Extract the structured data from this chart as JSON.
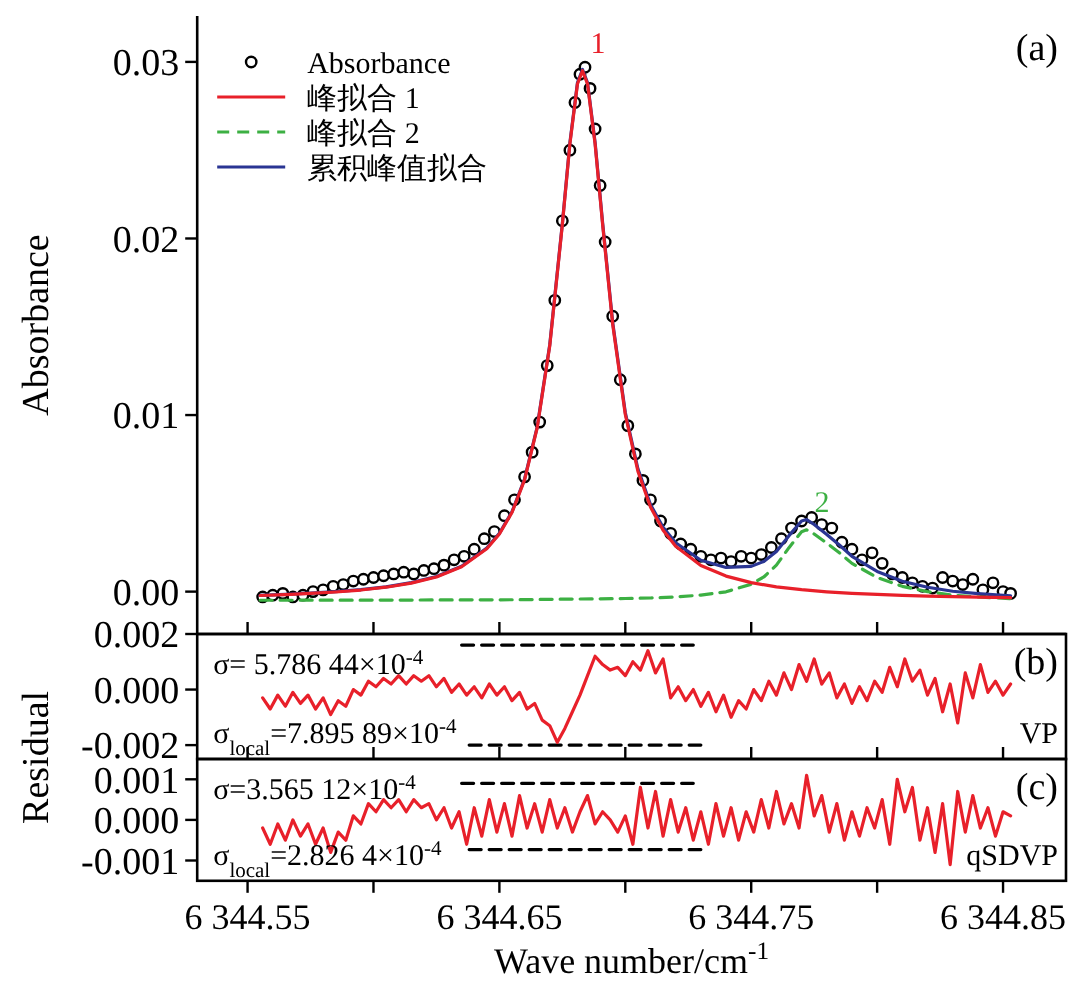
{
  "chart_data": [
    {
      "type": "line",
      "ylabel": "Absorbance",
      "xlim": [
        6344.53,
        6344.875
      ],
      "ylim": [
        -0.0024,
        0.0326
      ],
      "xticks": [
        6344.55,
        6344.6,
        6344.65,
        6344.7,
        6344.75,
        6344.8,
        6344.85
      ],
      "yticks": [
        {
          "value": 0,
          "label": "0.00"
        },
        {
          "value": 0.01,
          "label": "0.01"
        },
        {
          "value": 0.02,
          "label": "0.02"
        },
        {
          "value": 0.03,
          "label": "0.03"
        }
      ],
      "tick_labels": "y",
      "legend": "top left",
      "annotations": [
        "(a)",
        {
          "text": "1",
          "x": 6344.683,
          "y": 0.0295
        },
        {
          "text": "2",
          "x": 6344.772,
          "y": 0.0035
        }
      ],
      "series": [
        {
          "name": "Absorbance",
          "type": "scatter",
          "marker": "circle",
          "color": "#000000",
          "x": [
            6344.556,
            6344.56,
            6344.564,
            6344.568,
            6344.572,
            6344.576,
            6344.58,
            6344.584,
            6344.588,
            6344.592,
            6344.596,
            6344.6,
            6344.604,
            6344.608,
            6344.612,
            6344.616,
            6344.62,
            6344.624,
            6344.628,
            6344.632,
            6344.636,
            6344.64,
            6344.644,
            6344.648,
            6344.652,
            6344.656,
            6344.66,
            6344.663,
            6344.666,
            6344.669,
            6344.672,
            6344.675,
            6344.678,
            6344.68,
            6344.682,
            6344.684,
            6344.686,
            6344.688,
            6344.69,
            6344.692,
            6344.695,
            6344.698,
            6344.701,
            6344.704,
            6344.707,
            6344.71,
            6344.714,
            6344.718,
            6344.722,
            6344.726,
            6344.73,
            6344.734,
            6344.738,
            6344.742,
            6344.746,
            6344.75,
            6344.754,
            6344.758,
            6344.762,
            6344.766,
            6344.77,
            6344.774,
            6344.778,
            6344.782,
            6344.786,
            6344.79,
            6344.794,
            6344.798,
            6344.802,
            6344.806,
            6344.81,
            6344.814,
            6344.818,
            6344.822,
            6344.826,
            6344.83,
            6344.834,
            6344.838,
            6344.842,
            6344.846,
            6344.85,
            6344.853
          ],
          "values": [
            -0.0003,
            -0.0002,
            -0.0001,
            -0.0003,
            -0.0002,
            0.0,
            0.0001,
            0.0003,
            0.0004,
            0.0006,
            0.0007,
            0.0008,
            0.0009,
            0.001,
            0.0011,
            0.001,
            0.0012,
            0.0013,
            0.0015,
            0.0018,
            0.002,
            0.0024,
            0.003,
            0.0034,
            0.0043,
            0.0052,
            0.0065,
            0.0079,
            0.0096,
            0.0128,
            0.0165,
            0.021,
            0.025,
            0.0277,
            0.0293,
            0.0297,
            0.0285,
            0.0262,
            0.023,
            0.0198,
            0.0156,
            0.012,
            0.0094,
            0.0078,
            0.0063,
            0.0052,
            0.004,
            0.0033,
            0.0027,
            0.0024,
            0.002,
            0.0018,
            0.0019,
            0.0017,
            0.002,
            0.0019,
            0.0021,
            0.0025,
            0.003,
            0.0036,
            0.004,
            0.0042,
            0.0038,
            0.0036,
            0.0028,
            0.0024,
            0.0018,
            0.0022,
            0.0016,
            0.001,
            0.0008,
            0.0005,
            0.0003,
            0.0002,
            0.0008,
            0.0006,
            0.0004,
            0.0007,
            0.0001,
            0.0005,
            0.0,
            -0.0001
          ]
        },
        {
          "name": "峰拟合 1",
          "color": "#e8202a",
          "x": [
            6344.555,
            6344.565,
            6344.575,
            6344.585,
            6344.595,
            6344.605,
            6344.615,
            6344.625,
            6344.635,
            6344.645,
            6344.65,
            6344.655,
            6344.66,
            6344.665,
            6344.67,
            6344.675,
            6344.678,
            6344.681,
            6344.683,
            6344.685,
            6344.688,
            6344.691,
            6344.695,
            6344.7,
            6344.705,
            6344.71,
            6344.715,
            6344.72,
            6344.73,
            6344.74,
            6344.75,
            6344.76,
            6344.77,
            6344.78,
            6344.79,
            6344.8,
            6344.81,
            6344.82,
            6344.83,
            6344.84,
            6344.853
          ],
          "values": [
            -0.00022,
            -0.00017,
            -0.0001,
            -2e-05,
            9e-05,
            0.00025,
            0.00048,
            0.00083,
            0.00141,
            0.00243,
            0.00326,
            0.00448,
            0.00633,
            0.00927,
            0.01392,
            0.02078,
            0.02536,
            0.02875,
            0.0295,
            0.02875,
            0.02536,
            0.02078,
            0.01513,
            0.01003,
            0.00682,
            0.00479,
            0.00347,
            0.00257,
            0.00148,
            0.00088,
            0.00051,
            0.00027,
            0.00011,
            -1e-05,
            -0.0001,
            -0.00016,
            -0.00021,
            -0.00025,
            -0.00028,
            -0.00031,
            -0.00034
          ]
        },
        {
          "name": "峰拟合 2",
          "line_style": "dashed",
          "color": "#3cb043",
          "x": [
            6344.555,
            6344.605,
            6344.655,
            6344.7,
            6344.71,
            6344.72,
            6344.73,
            6344.74,
            6344.75,
            6344.755,
            6344.76,
            6344.765,
            6344.77,
            6344.772,
            6344.775,
            6344.78,
            6344.785,
            6344.79,
            6344.8,
            6344.81,
            6344.82,
            6344.83,
            6344.84,
            6344.853
          ],
          "values": [
            -0.00049,
            -0.00048,
            -0.00046,
            -0.00039,
            -0.00036,
            -0.0003,
            -0.0002,
            -1e-05,
            0.00042,
            0.00083,
            0.0015,
            0.00249,
            0.00339,
            0.0035,
            0.00326,
            0.00275,
            0.0022,
            0.0016,
            0.0008,
            0.0003,
            0.0,
            -0.0002,
            -0.0003,
            -0.0004
          ]
        },
        {
          "name": "累积峰值拟合",
          "color": "#2a3593",
          "x": [
            6344.555,
            6344.565,
            6344.575,
            6344.585,
            6344.595,
            6344.605,
            6344.615,
            6344.625,
            6344.635,
            6344.645,
            6344.65,
            6344.655,
            6344.66,
            6344.665,
            6344.67,
            6344.675,
            6344.678,
            6344.681,
            6344.683,
            6344.685,
            6344.688,
            6344.691,
            6344.695,
            6344.7,
            6344.705,
            6344.71,
            6344.715,
            6344.72,
            6344.73,
            6344.74,
            6344.75,
            6344.755,
            6344.76,
            6344.765,
            6344.77,
            6344.772,
            6344.775,
            6344.78,
            6344.785,
            6344.79,
            6344.8,
            6344.81,
            6344.82,
            6344.83,
            6344.84,
            6344.853
          ],
          "values": [
            -0.00021,
            -0.00016,
            -8e-05,
            0.0,
            0.00011,
            0.00027,
            0.00051,
            0.00086,
            0.00144,
            0.00247,
            0.0033,
            0.00452,
            0.00638,
            0.00932,
            0.01398,
            0.02084,
            0.02543,
            0.02882,
            0.02957,
            0.02882,
            0.02544,
            0.02087,
            0.01523,
            0.01014,
            0.00695,
            0.00493,
            0.00364,
            0.00277,
            0.00178,
            0.00137,
            0.00143,
            0.00171,
            0.00227,
            0.00317,
            0.004,
            0.00408,
            0.0038,
            0.00324,
            0.00264,
            0.002,
            0.00114,
            0.00059,
            0.00025,
            2e-05,
            -0.00011,
            -0.00024
          ]
        }
      ]
    },
    {
      "type": "line",
      "ylabel": "Residual",
      "xlim": [
        6344.53,
        6344.875
      ],
      "ylim": [
        -0.0025,
        0.002
      ],
      "xticks": [
        6344.55,
        6344.6,
        6344.65,
        6344.7,
        6344.75,
        6344.8,
        6344.85
      ],
      "yticks": [
        {
          "value": 0.002,
          "label": "0.002"
        },
        {
          "value": 0,
          "label": "0.000"
        },
        {
          "value": -0.002,
          "label": "-0.002"
        }
      ],
      "tick_labels": "y",
      "annotations": [
        "σ= 5.786 44×10$^{-4}$",
        "σ$_{local}$=7.895 89×10$^{-4}$",
        "VP",
        "(b)"
      ],
      "series": [
        {
          "color": "#e8202a",
          "x": [
            6344.556,
            6344.559,
            6344.562,
            6344.565,
            6344.568,
            6344.571,
            6344.574,
            6344.577,
            6344.58,
            6344.583,
            6344.586,
            6344.589,
            6344.592,
            6344.595,
            6344.598,
            6344.601,
            6344.604,
            6344.607,
            6344.61,
            6344.613,
            6344.616,
            6344.619,
            6344.622,
            6344.625,
            6344.628,
            6344.631,
            6344.634,
            6344.637,
            6344.64,
            6344.643,
            6344.646,
            6344.649,
            6344.652,
            6344.655,
            6344.658,
            6344.661,
            6344.664,
            6344.667,
            6344.67,
            6344.673,
            6344.676,
            6344.679,
            6344.682,
            6344.685,
            6344.688,
            6344.691,
            6344.694,
            6344.697,
            6344.7,
            6344.703,
            6344.706,
            6344.709,
            6344.712,
            6344.715,
            6344.718,
            6344.721,
            6344.724,
            6344.727,
            6344.73,
            6344.733,
            6344.736,
            6344.739,
            6344.742,
            6344.745,
            6344.748,
            6344.751,
            6344.754,
            6344.757,
            6344.76,
            6344.763,
            6344.766,
            6344.769,
            6344.772,
            6344.775,
            6344.778,
            6344.781,
            6344.784,
            6344.787,
            6344.79,
            6344.793,
            6344.796,
            6344.799,
            6344.802,
            6344.805,
            6344.808,
            6344.811,
            6344.814,
            6344.817,
            6344.82,
            6344.823,
            6344.826,
            6344.829,
            6344.832,
            6344.835,
            6344.838,
            6344.841,
            6344.844,
            6344.847,
            6344.85,
            6344.853
          ],
          "values": [
            -0.0003,
            -0.0007,
            -0.0002,
            -0.0006,
            -0.0001,
            -0.0005,
            -0.0002,
            -0.0007,
            -0.0003,
            -0.0009,
            -0.0004,
            -0.0006,
            0.0,
            -0.0002,
            0.0003,
            0.0001,
            0.0004,
            0.0002,
            0.0005,
            0.0002,
            0.0005,
            0.0003,
            0.0005,
            0.0001,
            0.0004,
            -0.0001,
            0.0002,
            -0.0002,
            0.0001,
            -0.0003,
            0.0002,
            -0.0002,
            0.0001,
            -0.0004,
            -0.0001,
            -0.0007,
            -0.0005,
            -0.0011,
            -0.0013,
            -0.0019,
            -0.0014,
            -0.0008,
            -0.0002,
            0.0005,
            0.0012,
            0.0009,
            0.0007,
            0.0008,
            0.0005,
            0.001,
            0.0007,
            0.0014,
            0.0006,
            0.0011,
            -0.0003,
            0.0001,
            -0.0004,
            0.0,
            -0.0006,
            -0.0001,
            -0.0008,
            -0.0002,
            -0.001,
            -0.0004,
            -0.0007,
            0.0,
            -0.0004,
            0.0003,
            -0.0002,
            0.0006,
            0.0,
            0.0009,
            0.0003,
            0.0011,
            0.0002,
            0.0006,
            -0.0003,
            0.0002,
            -0.0005,
            0.0001,
            -0.0004,
            0.0003,
            -0.0001,
            0.0008,
            0.0001,
            0.0011,
            0.0003,
            0.0007,
            -0.0002,
            0.0004,
            -0.0008,
            0.0002,
            -0.0012,
            0.0006,
            -0.0003,
            0.0009,
            -0.0001,
            0.0003,
            -0.0002,
            0.0002
          ]
        },
        {
          "line_style": "dashed",
          "color": "#000000",
          "x": [
            6344.635,
            6344.727
          ],
          "values": [
            0.0016,
            0.0016
          ]
        },
        {
          "line_style": "dashed",
          "color": "#000000",
          "x": [
            6344.638,
            6344.73
          ],
          "values": [
            -0.002,
            -0.002
          ]
        }
      ]
    },
    {
      "type": "line",
      "xlabel": "Wave number/cm$^{-1}$",
      "xlim": [
        6344.53,
        6344.875
      ],
      "ylim": [
        -0.0015,
        0.0015
      ],
      "xticks": [
        {
          "value": 6344.55,
          "label": "6 344.55"
        },
        {
          "value": 6344.6,
          "label": null
        },
        {
          "value": 6344.65,
          "label": "6 344.65"
        },
        {
          "value": 6344.7,
          "label": null
        },
        {
          "value": 6344.75,
          "label": "6 344.75"
        },
        {
          "value": 6344.8,
          "label": null
        },
        {
          "value": 6344.85,
          "label": "6 344.85"
        }
      ],
      "yticks": [
        {
          "value": 0.001,
          "label": "0.001"
        },
        {
          "value": 0,
          "label": "0.000"
        },
        {
          "value": -0.001,
          "label": "-0.001"
        }
      ],
      "annotations": [
        "σ=3.565 12×10$^{-4}$",
        "σ$_{local}$=2.826 4×10$^{-4}$",
        "qSDVP",
        "(c)"
      ],
      "series": [
        {
          "color": "#e8202a",
          "x": [
            6344.556,
            6344.559,
            6344.562,
            6344.565,
            6344.568,
            6344.571,
            6344.574,
            6344.577,
            6344.58,
            6344.583,
            6344.586,
            6344.589,
            6344.592,
            6344.595,
            6344.598,
            6344.601,
            6344.604,
            6344.607,
            6344.61,
            6344.613,
            6344.616,
            6344.619,
            6344.622,
            6344.625,
            6344.628,
            6344.631,
            6344.634,
            6344.637,
            6344.64,
            6344.643,
            6344.646,
            6344.649,
            6344.652,
            6344.655,
            6344.658,
            6344.661,
            6344.664,
            6344.667,
            6344.67,
            6344.673,
            6344.676,
            6344.679,
            6344.682,
            6344.685,
            6344.688,
            6344.691,
            6344.694,
            6344.697,
            6344.7,
            6344.703,
            6344.706,
            6344.709,
            6344.712,
            6344.715,
            6344.718,
            6344.721,
            6344.724,
            6344.727,
            6344.73,
            6344.733,
            6344.736,
            6344.739,
            6344.742,
            6344.745,
            6344.748,
            6344.751,
            6344.754,
            6344.757,
            6344.76,
            6344.763,
            6344.766,
            6344.769,
            6344.772,
            6344.775,
            6344.778,
            6344.781,
            6344.784,
            6344.787,
            6344.79,
            6344.793,
            6344.796,
            6344.799,
            6344.802,
            6344.805,
            6344.808,
            6344.811,
            6344.814,
            6344.817,
            6344.82,
            6344.823,
            6344.826,
            6344.829,
            6344.832,
            6344.835,
            6344.838,
            6344.841,
            6344.844,
            6344.847,
            6344.85,
            6344.853
          ],
          "values": [
            -0.0002,
            -0.0006,
            -0.0001,
            -0.0005,
            0.0,
            -0.0004,
            -0.0001,
            -0.0006,
            -0.0002,
            -0.0008,
            -0.0003,
            -0.0005,
            0.0001,
            -0.0001,
            0.0004,
            0.0002,
            0.0005,
            0.0003,
            0.0005,
            0.0002,
            0.0005,
            0.0003,
            0.0004,
            0.0,
            0.0003,
            -0.0002,
            0.0002,
            -0.0006,
            0.0003,
            -0.0004,
            0.0005,
            -0.0003,
            0.0004,
            -0.0004,
            0.0006,
            -0.0002,
            0.0004,
            -0.0003,
            0.0005,
            -0.0002,
            0.0003,
            -0.0003,
            0.0002,
            0.0006,
            -0.0001,
            0.0002,
            0.0,
            -0.0003,
            0.0001,
            -0.0006,
            0.0008,
            -0.0002,
            0.0007,
            -0.0004,
            0.0005,
            -0.0003,
            0.0003,
            -0.0005,
            0.0002,
            -0.0006,
            0.0004,
            -0.0004,
            0.0003,
            -0.0005,
            0.0002,
            -0.0003,
            0.0005,
            -0.0002,
            0.0007,
            -0.0001,
            0.0004,
            -0.0002,
            0.0011,
            0.0001,
            0.0006,
            -0.0003,
            0.0004,
            -0.0005,
            0.0002,
            -0.0004,
            0.0003,
            -0.0002,
            0.0005,
            -0.0006,
            0.001,
            0.0002,
            0.0008,
            -0.0005,
            0.0003,
            -0.0008,
            0.0004,
            -0.0011,
            0.0007,
            -0.0003,
            0.0006,
            -0.0002,
            0.0003,
            -0.0004,
            0.0002,
            0.0001
          ]
        },
        {
          "line_style": "dashed",
          "color": "#000000",
          "x": [
            6344.635,
            6344.727
          ],
          "values": [
            0.0009,
            0.0009
          ]
        },
        {
          "line_style": "dashed",
          "color": "#000000",
          "x": [
            6344.638,
            6344.73
          ],
          "values": [
            -0.00073,
            -0.00073
          ]
        }
      ]
    }
  ]
}
